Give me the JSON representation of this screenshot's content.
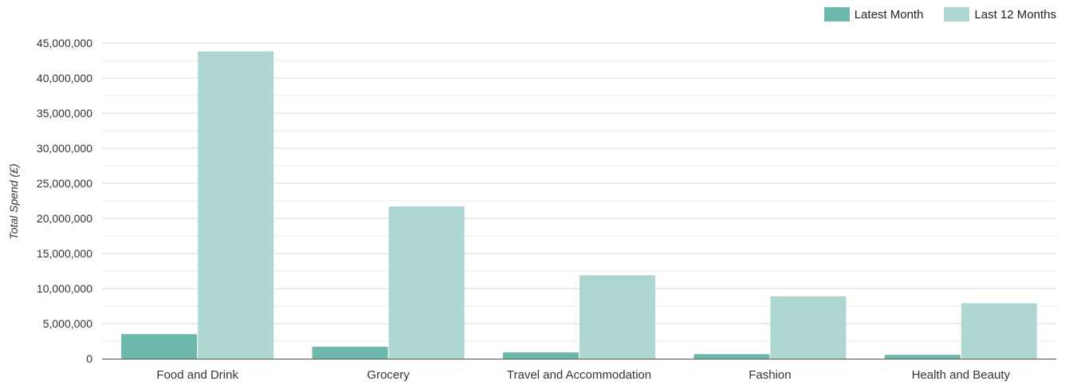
{
  "chart_data": {
    "type": "bar",
    "categories": [
      "Food and Drink",
      "Grocery",
      "Travel and Accommodation",
      "Fashion",
      "Health and Beauty"
    ],
    "series": [
      {
        "name": "Latest Month",
        "color": "#6cb8ad",
        "values": [
          3500000,
          1700000,
          900000,
          650000,
          550000
        ]
      },
      {
        "name": "Last 12 Months",
        "color": "#aed7d2",
        "values": [
          43800000,
          21700000,
          11900000,
          8900000,
          7900000
        ]
      }
    ],
    "ylabel": "Total Spend (£)",
    "xlabel": "",
    "ylim": [
      0,
      45000000
    ],
    "yticks": [
      0,
      5000000,
      10000000,
      15000000,
      20000000,
      25000000,
      30000000,
      35000000,
      40000000,
      45000000
    ],
    "ytick_labels": [
      "0",
      "5,000,000",
      "10,000,000",
      "15,000,000",
      "20,000,000",
      "25,000,000",
      "30,000,000",
      "35,000,000",
      "40,000,000",
      "45,000,000"
    ],
    "grid": true,
    "legend_position": "top-right"
  }
}
